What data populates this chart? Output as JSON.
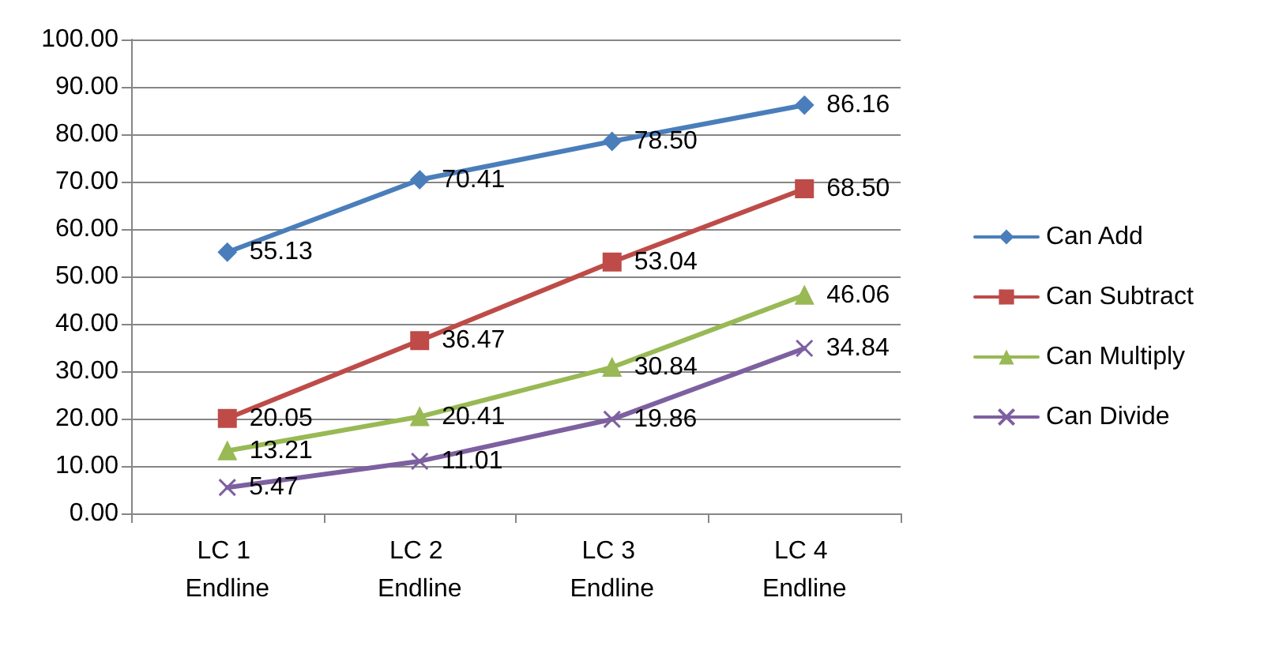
{
  "chart_data": {
    "type": "line",
    "categories": [
      "LC 1 Endline",
      "LC 2 Endline",
      "LC 3 Endline",
      "LC 4 Endline"
    ],
    "series": [
      {
        "name": "Can Add",
        "color": "#4a7ebb",
        "marker": "diamond",
        "values": [
          55.13,
          70.41,
          78.5,
          86.16
        ],
        "value_labels": [
          "55.13",
          "70.41",
          "78.50",
          "86.16"
        ]
      },
      {
        "name": "Can Subtract",
        "color": "#be4b48",
        "marker": "square",
        "values": [
          20.05,
          36.47,
          53.04,
          68.5
        ],
        "value_labels": [
          "20.05",
          "36.47",
          "53.04",
          "68.50"
        ]
      },
      {
        "name": "Can Multiply",
        "color": "#98b954",
        "marker": "triangle",
        "values": [
          13.21,
          20.41,
          30.84,
          46.06
        ],
        "value_labels": [
          "13.21",
          "20.41",
          "30.84",
          "46.06"
        ]
      },
      {
        "name": "Can Divide",
        "color": "#7d60a0",
        "marker": "cross",
        "values": [
          5.47,
          11.01,
          19.86,
          34.84
        ],
        "value_labels": [
          "5.47",
          "11.01",
          "19.86",
          "34.84"
        ]
      }
    ],
    "ylim": [
      0,
      100
    ],
    "yticks": [
      {
        "value": 0,
        "label": "0.00"
      },
      {
        "value": 10,
        "label": "10.00"
      },
      {
        "value": 20,
        "label": "20.00"
      },
      {
        "value": 30,
        "label": "30.00"
      },
      {
        "value": 40,
        "label": "40.00"
      },
      {
        "value": 50,
        "label": "50.00"
      },
      {
        "value": 60,
        "label": "60.00"
      },
      {
        "value": 70,
        "label": "70.00"
      },
      {
        "value": 80,
        "label": "80.00"
      },
      {
        "value": 90,
        "label": "90.00"
      },
      {
        "value": 100,
        "label": "100.00"
      }
    ],
    "grid": "y",
    "legend": "right",
    "line_style": "solid"
  }
}
